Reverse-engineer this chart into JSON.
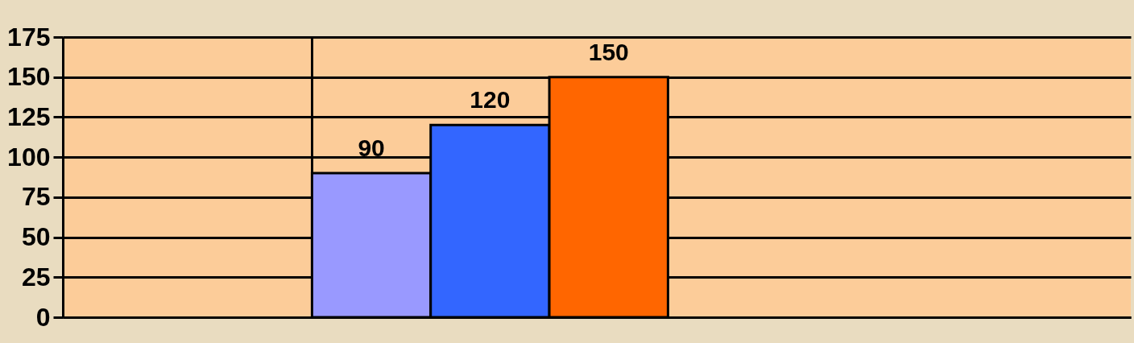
{
  "chart_data": {
    "type": "bar",
    "categories": [
      null
    ],
    "series": [
      {
        "color": "#9999ff",
        "values": [
          90
        ]
      },
      {
        "color": "#3366ff",
        "values": [
          120
        ]
      },
      {
        "color": "#ff6600",
        "values": [
          150
        ]
      }
    ],
    "ylim": [
      0,
      175
    ],
    "yticks": [
      0,
      25,
      50,
      75,
      100,
      125,
      150,
      175
    ],
    "grid": true,
    "data_labels": true,
    "tick_labels": "y",
    "legend": false
  }
}
